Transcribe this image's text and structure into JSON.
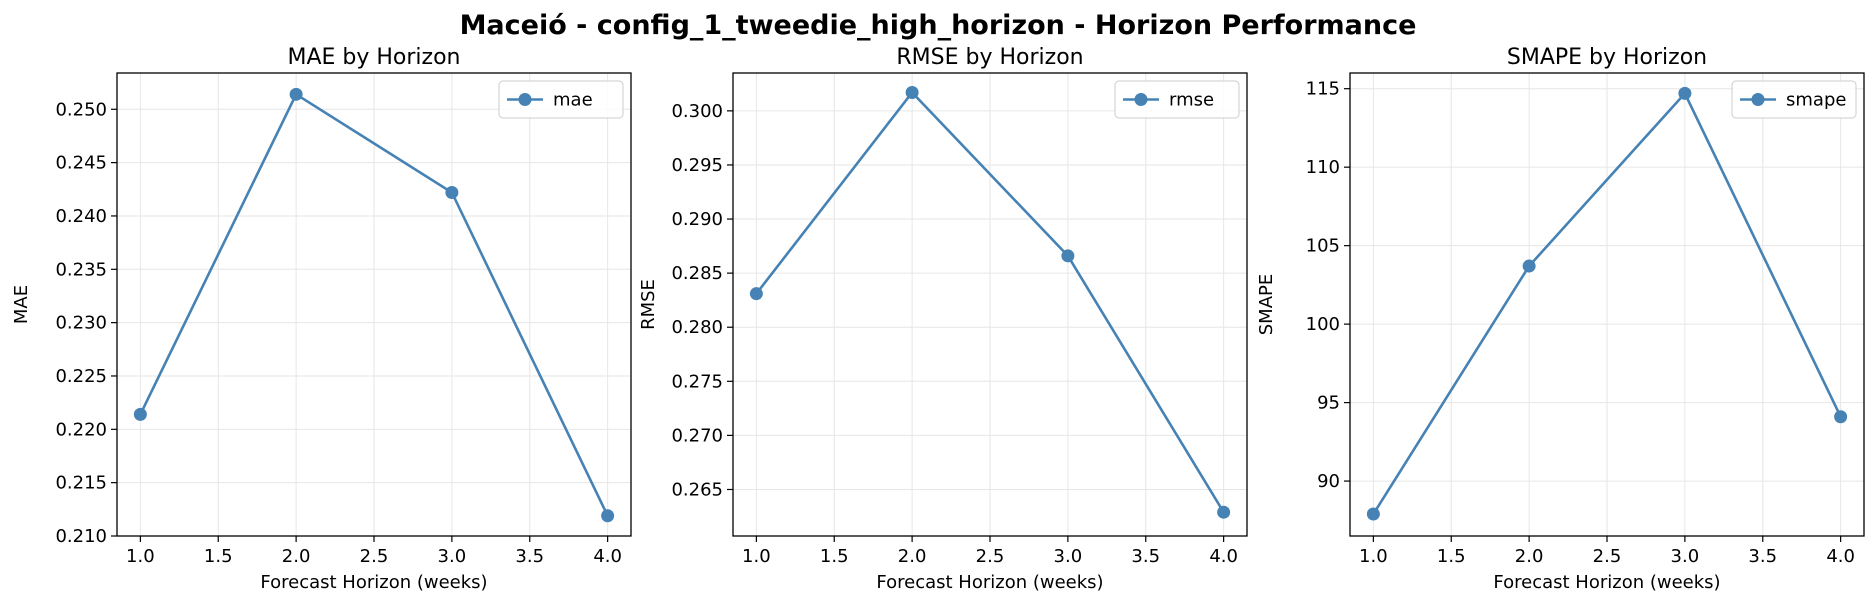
{
  "figure": {
    "title": "Maceió - config_1_tweedie_high_horizon - Horizon Performance",
    "line_color": "#4682B4"
  },
  "chart_data": [
    {
      "type": "line",
      "title": "MAE by Horizon",
      "xlabel": "Forecast Horizon (weeks)",
      "ylabel": "MAE",
      "x": [
        1.0,
        2.0,
        3.0,
        4.0
      ],
      "series": [
        {
          "name": "mae",
          "values": [
            0.2214,
            0.2514,
            0.2422,
            0.2119
          ]
        }
      ],
      "xlim": [
        0.85,
        4.15
      ],
      "ylim": [
        0.21,
        0.2534
      ],
      "xticks": [
        1.0,
        1.5,
        2.0,
        2.5,
        3.0,
        3.5,
        4.0
      ],
      "xtick_labels": [
        "1.0",
        "1.5",
        "2.0",
        "2.5",
        "3.0",
        "3.5",
        "4.0"
      ],
      "yticks": [
        0.21,
        0.215,
        0.22,
        0.225,
        0.23,
        0.235,
        0.24,
        0.245,
        0.25
      ],
      "ytick_labels": [
        "0.210",
        "0.215",
        "0.220",
        "0.225",
        "0.230",
        "0.235",
        "0.240",
        "0.245",
        "0.250"
      ],
      "grid": true,
      "legend": "upper right"
    },
    {
      "type": "line",
      "title": "RMSE by Horizon",
      "xlabel": "Forecast Horizon (weeks)",
      "ylabel": "RMSE",
      "x": [
        1.0,
        2.0,
        3.0,
        4.0
      ],
      "series": [
        {
          "name": "rmse",
          "values": [
            0.2831,
            0.3017,
            0.2866,
            0.2629
          ]
        }
      ],
      "xlim": [
        0.85,
        4.15
      ],
      "ylim": [
        0.2607,
        0.3035
      ],
      "xticks": [
        1.0,
        1.5,
        2.0,
        2.5,
        3.0,
        3.5,
        4.0
      ],
      "xtick_labels": [
        "1.0",
        "1.5",
        "2.0",
        "2.5",
        "3.0",
        "3.5",
        "4.0"
      ],
      "yticks": [
        0.265,
        0.27,
        0.275,
        0.28,
        0.285,
        0.29,
        0.295,
        0.3
      ],
      "ytick_labels": [
        "0.265",
        "0.270",
        "0.275",
        "0.280",
        "0.285",
        "0.290",
        "0.295",
        "0.300"
      ],
      "grid": true,
      "legend": "upper right"
    },
    {
      "type": "line",
      "title": "SMAPE by Horizon",
      "xlabel": "Forecast Horizon (weeks)",
      "ylabel": "SMAPE",
      "x": [
        1.0,
        2.0,
        3.0,
        4.0
      ],
      "series": [
        {
          "name": "smape",
          "values": [
            87.9,
            103.7,
            114.7,
            94.1
          ]
        }
      ],
      "xlim": [
        0.85,
        4.15
      ],
      "ylim": [
        86.5,
        116.0
      ],
      "xticks": [
        1.0,
        1.5,
        2.0,
        2.5,
        3.0,
        3.5,
        4.0
      ],
      "xtick_labels": [
        "1.0",
        "1.5",
        "2.0",
        "2.5",
        "3.0",
        "3.5",
        "4.0"
      ],
      "yticks": [
        90,
        95,
        100,
        105,
        110,
        115
      ],
      "ytick_labels": [
        "90",
        "95",
        "100",
        "105",
        "110",
        "115"
      ],
      "grid": true,
      "legend": "upper right"
    }
  ]
}
